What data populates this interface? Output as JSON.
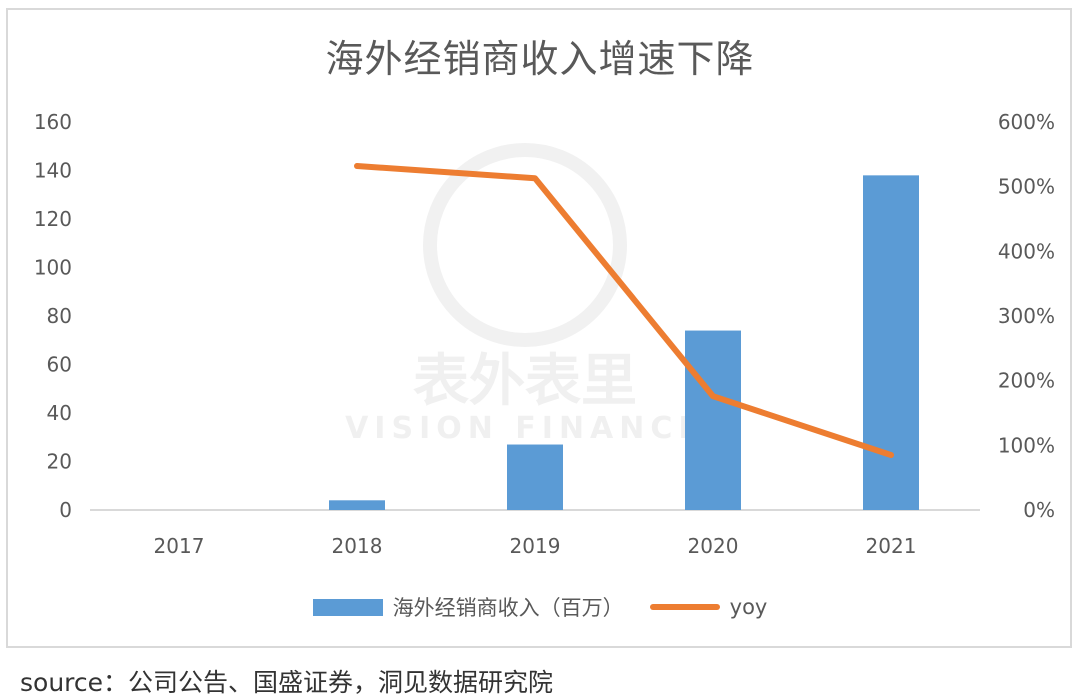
{
  "chart_data": {
    "type": "bar+line",
    "title": "海外经销商收入增速下降",
    "categories": [
      "2017",
      "2018",
      "2019",
      "2020",
      "2021"
    ],
    "series": [
      {
        "name": "海外经销商收入（百万）",
        "type": "bar",
        "axis": "left",
        "color": "#5b9bd5",
        "values": [
          0,
          4,
          27,
          74,
          138
        ]
      },
      {
        "name": "yoy",
        "type": "line",
        "axis": "right",
        "color": "#ed7d31",
        "values": [
          null,
          532,
          513,
          176,
          85
        ]
      }
    ],
    "left_axis": {
      "ticks": [
        "0",
        "20",
        "40",
        "60",
        "80",
        "100",
        "120",
        "140",
        "160"
      ],
      "ylim": [
        0,
        160
      ]
    },
    "right_axis": {
      "ticks": [
        "0%",
        "100%",
        "200%",
        "300%",
        "400%",
        "500%",
        "600%"
      ],
      "ylim": [
        0,
        600
      ],
      "unit": "%"
    },
    "grid": false,
    "legend_position": "bottom",
    "xlabel": "",
    "ylabel": ""
  },
  "legend": {
    "bar_label": "海外经销商收入（百万）",
    "line_label": "yoy"
  },
  "watermark": {
    "cn": "表外表里",
    "en": "VISION FINANCE"
  },
  "source": "source：公司公告、国盛证券，洞见数据研究院",
  "colors": {
    "bar": "#5b9bd5",
    "line": "#ed7d31",
    "text": "#595959"
  }
}
